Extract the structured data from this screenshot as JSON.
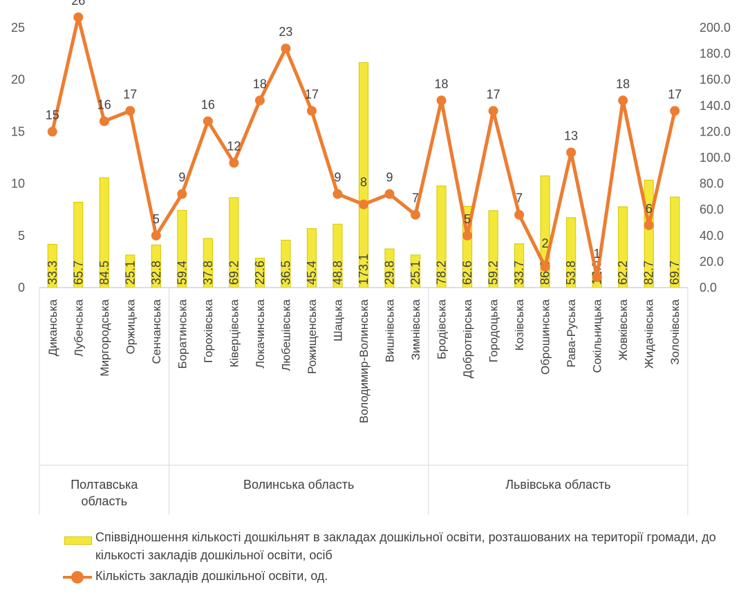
{
  "chart_data": {
    "type": "bar",
    "categories": [
      "Диканська",
      "Лубенська",
      "Миргородська",
      "Оржицька",
      "Сенчанська",
      "Боратинська",
      "Горохівська",
      "Ківерцівська",
      "Локачинська",
      "Любешівська",
      "Рожищенська",
      "Шацька",
      "Володимир-Волинська",
      "Вишнівська",
      "Зимнівська",
      "Бродівська",
      "Добротвірська",
      "Городоцька",
      "Козівська",
      "Оброшинська",
      "Рава-Руська",
      "Сокільницька",
      "Жовківська",
      "Жидачівська",
      "Золочівська"
    ],
    "groups": [
      {
        "label": "Полтавська область",
        "lines": [
          "Полтавська",
          "область"
        ],
        "count": 5
      },
      {
        "label": "Волинська область",
        "lines": [
          "Волинська область"
        ],
        "count": 10
      },
      {
        "label": "Львівська область",
        "lines": [
          "Львівська область"
        ],
        "count": 10
      }
    ],
    "series": [
      {
        "name": "Співвідношення кількості дошкільнят в закладах дошкільної освіти, розташованих на території громади, до кількості закладів дошкільної освіти, осіб",
        "type": "bar",
        "axis": "right",
        "color": "#f3e83a",
        "values": [
          33.3,
          65.7,
          84.5,
          25.1,
          32.8,
          59.4,
          37.8,
          69.2,
          22.6,
          36.5,
          45.4,
          48.8,
          173.1,
          29.8,
          25.1,
          78.2,
          62.6,
          59.2,
          33.7,
          86.0,
          53.8,
          12.0,
          62.2,
          82.7,
          69.7
        ],
        "labels": [
          "33.3",
          "65.7",
          "84.5",
          "25.1",
          "32.8",
          "59.4",
          "37.8",
          "69.2",
          "22.6",
          "36.5",
          "45.4",
          "48.8",
          "173.1",
          "29.8",
          "25.1",
          "78.2",
          "62.6",
          "59.2",
          "33.7",
          "86.0",
          "53.8",
          "12.0",
          "62.2",
          "82.7",
          "69.7"
        ]
      },
      {
        "name": "Кількість закладів дошкільної освіти, од.",
        "type": "line",
        "axis": "left",
        "color": "#ed7d31",
        "values": [
          15,
          26,
          16,
          17,
          5,
          9,
          16,
          12,
          18,
          23,
          17,
          9,
          8,
          9,
          7,
          18,
          5,
          17,
          7,
          2,
          13,
          1,
          18,
          6,
          17
        ]
      }
    ],
    "left_axis": {
      "min": 0,
      "max": 25,
      "ticks": [
        "0",
        "5",
        "10",
        "15",
        "20",
        "25"
      ]
    },
    "right_axis": {
      "min": 0,
      "max": 200,
      "ticks": [
        "0.0",
        "20.0",
        "40.0",
        "60.0",
        "80.0",
        "100.0",
        "120.0",
        "140.0",
        "160.0",
        "180.0",
        "200.0"
      ]
    },
    "grid": false,
    "legend_position": "bottom"
  },
  "legend": {
    "bar_label": "Співвідношення кількості дошкільнят в закладах дошкільної освіти, розташованих на території громади, до кількості закладів дошкільної освіти, осіб",
    "line_label": "Кількість закладів дошкільної освіти, од."
  }
}
